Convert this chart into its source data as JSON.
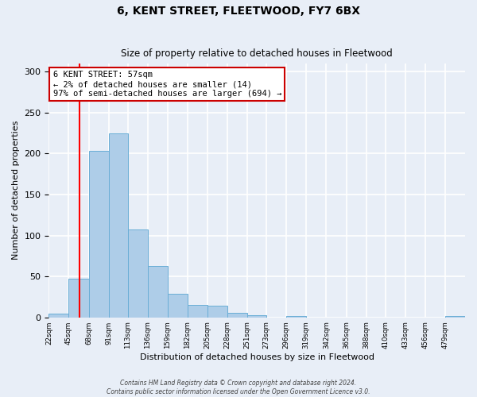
{
  "title": "6, KENT STREET, FLEETWOOD, FY7 6BX",
  "subtitle": "Size of property relative to detached houses in Fleetwood",
  "xlabel": "Distribution of detached houses by size in Fleetwood",
  "ylabel": "Number of detached properties",
  "bar_values": [
    5,
    47,
    203,
    225,
    107,
    63,
    29,
    15,
    14,
    6,
    3,
    0,
    2,
    0,
    0,
    0,
    0,
    0,
    0,
    0,
    2
  ],
  "bin_edges": [
    22,
    45,
    68,
    91,
    113,
    136,
    159,
    182,
    205,
    228,
    251,
    273,
    296,
    319,
    342,
    365,
    388,
    410,
    433,
    456,
    479,
    502
  ],
  "tick_labels": [
    "22sqm",
    "45sqm",
    "68sqm",
    "91sqm",
    "113sqm",
    "136sqm",
    "159sqm",
    "182sqm",
    "205sqm",
    "228sqm",
    "251sqm",
    "273sqm",
    "296sqm",
    "319sqm",
    "342sqm",
    "365sqm",
    "388sqm",
    "410sqm",
    "433sqm",
    "456sqm",
    "479sqm"
  ],
  "bar_color": "#aecde8",
  "bar_edge_color": "#6aaed6",
  "red_line_x": 57,
  "ylim": [
    0,
    310
  ],
  "yticks": [
    0,
    50,
    100,
    150,
    200,
    250,
    300
  ],
  "annotation_title": "6 KENT STREET: 57sqm",
  "annotation_line1": "← 2% of detached houses are smaller (14)",
  "annotation_line2": "97% of semi-detached houses are larger (694) →",
  "annotation_box_color": "#ffffff",
  "annotation_box_edge": "#cc0000",
  "footnote1": "Contains HM Land Registry data © Crown copyright and database right 2024.",
  "footnote2": "Contains public sector information licensed under the Open Government Licence v3.0.",
  "background_color": "#e8eef7",
  "grid_color": "#ffffff"
}
